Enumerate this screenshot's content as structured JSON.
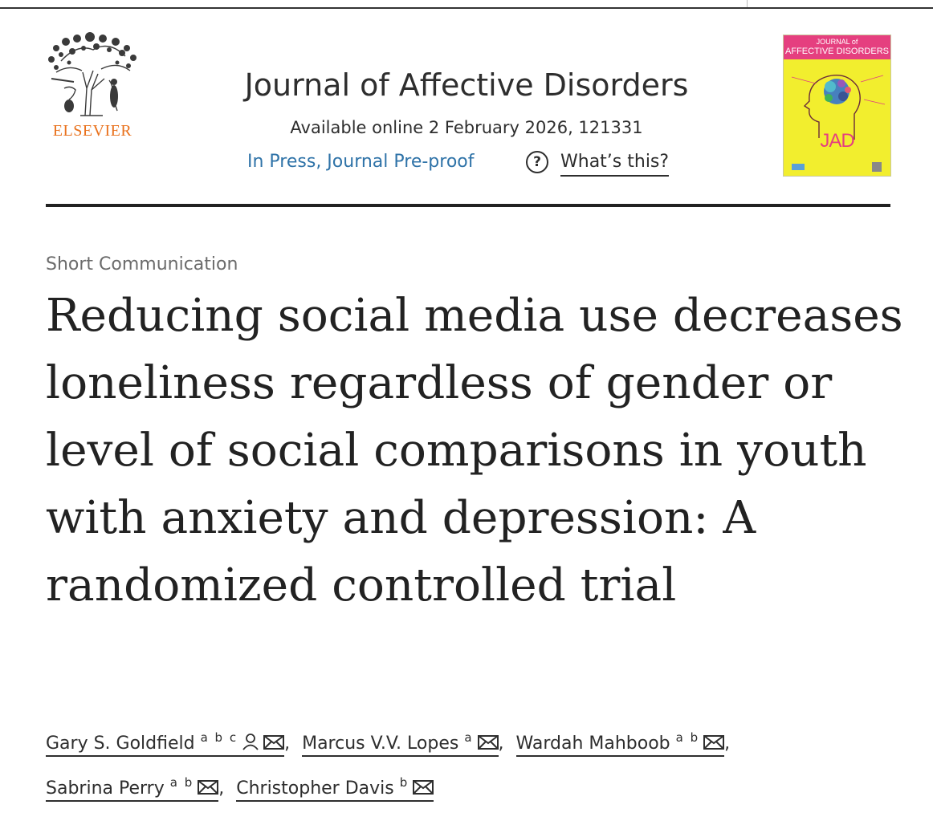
{
  "publisher": {
    "name": "ELSEVIER"
  },
  "journal": {
    "title": "Journal of Affective Disorders",
    "available_online": "Available online 2 February 2026, 121331",
    "status": "In Press, Journal Pre-proof",
    "help_link": "What’s this?"
  },
  "cover": {
    "line1": "JOURNAL of",
    "line2": "AFFECTIVE DISORDERS",
    "abbreviation": "JAD"
  },
  "article": {
    "type": "Short Communication",
    "title": "Reducing social media use decreases loneliness regardless of gender or level of social comparisons in youth with anxiety and depression: A randomized controlled trial"
  },
  "authors": [
    {
      "name": "Gary S. Goldfield",
      "affiliations": "abc",
      "corresponding": true,
      "email": true
    },
    {
      "name": "Marcus V.V. Lopes",
      "affiliations": "a",
      "corresponding": false,
      "email": true
    },
    {
      "name": "Wardah Mahboob",
      "affiliations": "ab",
      "corresponding": false,
      "email": true
    },
    {
      "name": "Sabrina Perry",
      "affiliations": "ab",
      "corresponding": false,
      "email": true
    },
    {
      "name": "Christopher Davis",
      "affiliations": "b",
      "corresponding": false,
      "email": true
    }
  ],
  "icons": {
    "publisher_logo": "elsevier-tree-logo",
    "help": "question-circle-icon",
    "corresponding": "person-icon",
    "email": "envelope-icon"
  },
  "colors": {
    "publisher_orange": "#e9711c",
    "link_blue": "#2f73a8",
    "cover_yellow": "#f2ee2e",
    "cover_pink": "#e53f7f"
  }
}
